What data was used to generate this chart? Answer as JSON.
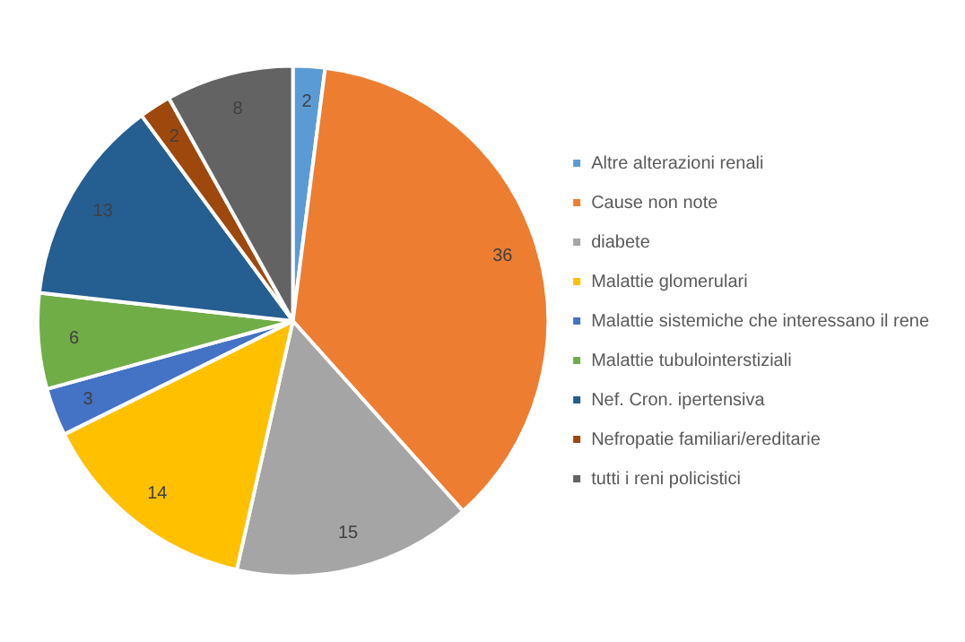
{
  "chart_data": {
    "type": "pie",
    "categories": [
      "Altre alterazioni renali",
      "Cause non note",
      "diabete",
      "Malattie glomerulari",
      "Malattie sistemiche che interessano il rene",
      "Malattie tubulointerstiziali",
      "Nef. Cron. ipertensiva",
      "Nefropatie familiari/ereditarie",
      "tutti i reni policistici"
    ],
    "values": [
      2,
      36,
      15,
      14,
      3,
      6,
      13,
      2,
      8
    ],
    "colors": [
      "#5b9bd5",
      "#ed7d31",
      "#a5a5a5",
      "#ffc000",
      "#4472c4",
      "#70ad47",
      "#255e91",
      "#9e480e",
      "#636363"
    ],
    "data_labels": true,
    "legend": "right"
  }
}
